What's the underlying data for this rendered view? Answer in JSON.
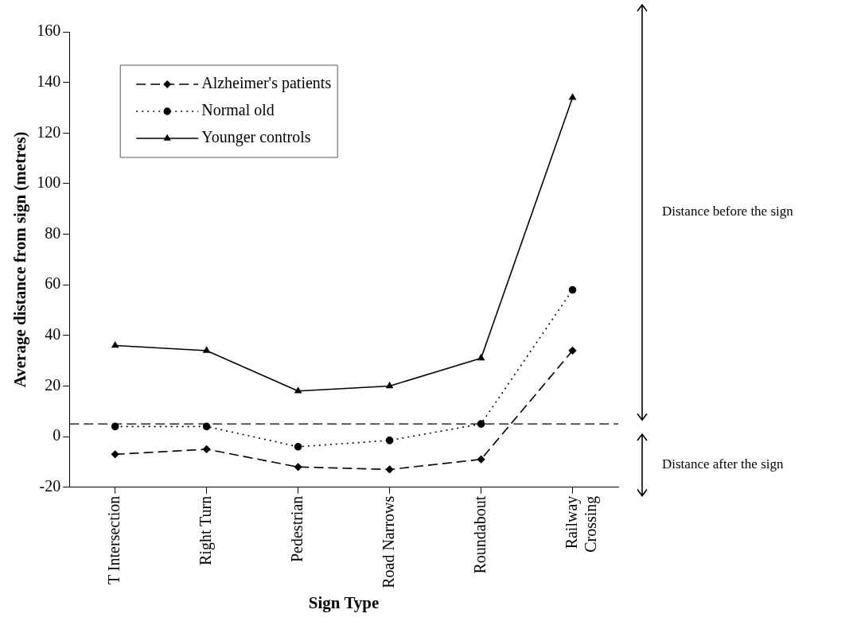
{
  "chart_data": {
    "type": "line",
    "xlabel": "Sign Type",
    "ylabel": "Average distance from sign (metres)",
    "categories": [
      "T Intersection",
      "Right Turn",
      "Pedestrian",
      "Road Narrows",
      "Roundabout",
      "Railway Crossing"
    ],
    "series": [
      {
        "name": "Alzheimer's patients",
        "color": "#000000",
        "values": [
          -7,
          -5,
          -12,
          -13,
          -9,
          34
        ],
        "marker": "diamond",
        "line_style": "dashed"
      },
      {
        "name": "Normal old",
        "color": "#000000",
        "values": [
          4,
          4,
          -4,
          -1.5,
          5,
          58
        ],
        "marker": "circle",
        "line_style": "dotted"
      },
      {
        "name": "Younger controls",
        "color": "#000000",
        "values": [
          36,
          34,
          18,
          20,
          31,
          134
        ],
        "marker": "triangle",
        "line_style": "solid"
      }
    ],
    "ylim": [
      -20,
      160
    ],
    "yticks": [
      -20,
      0,
      20,
      40,
      60,
      80,
      100,
      120,
      140,
      160
    ],
    "ref_lines": [
      {
        "axis": "y",
        "value": 5,
        "line_style": "dashed",
        "color": "#000000"
      }
    ],
    "annotations": [
      "Distance before the sign",
      "Distance after the sign"
    ],
    "grid": false,
    "legend": "top left"
  }
}
